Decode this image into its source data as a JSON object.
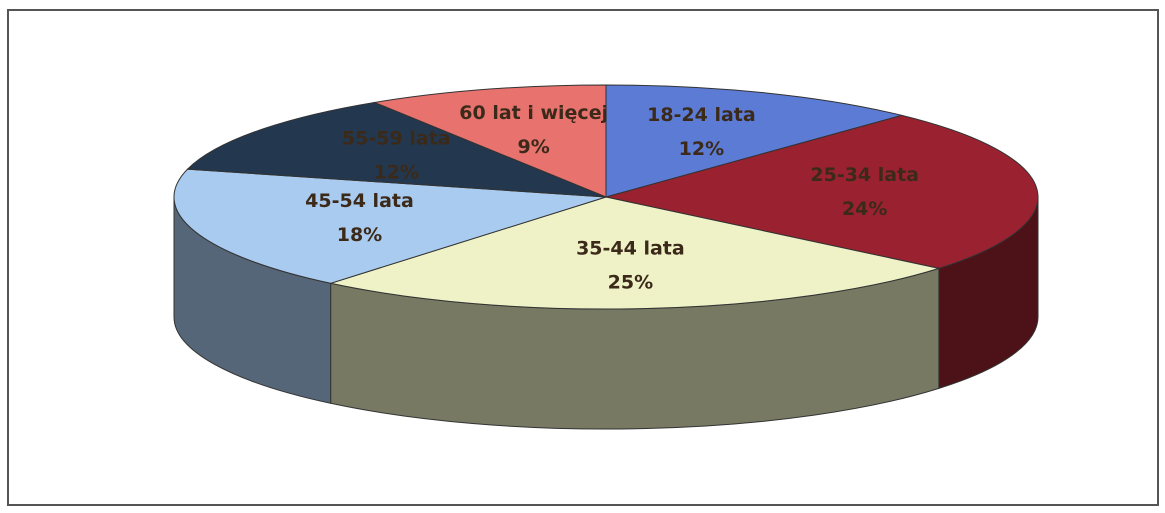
{
  "chart_data": {
    "type": "pie3d",
    "categories": [
      "18-24 lata",
      "25-34 lata",
      "35-44 lata",
      "45-54 lata",
      "55-59 lata",
      "60 lat i więcej"
    ],
    "values": [
      12,
      24,
      25,
      18,
      12,
      9
    ],
    "value_labels": [
      "12%",
      "24%",
      "25%",
      "18%",
      "12%",
      "9%"
    ],
    "colors": [
      "#5b7bd5",
      "#9a2130",
      "#eef2c6",
      "#a9cbef",
      "#23374e",
      "#e8726d"
    ]
  }
}
